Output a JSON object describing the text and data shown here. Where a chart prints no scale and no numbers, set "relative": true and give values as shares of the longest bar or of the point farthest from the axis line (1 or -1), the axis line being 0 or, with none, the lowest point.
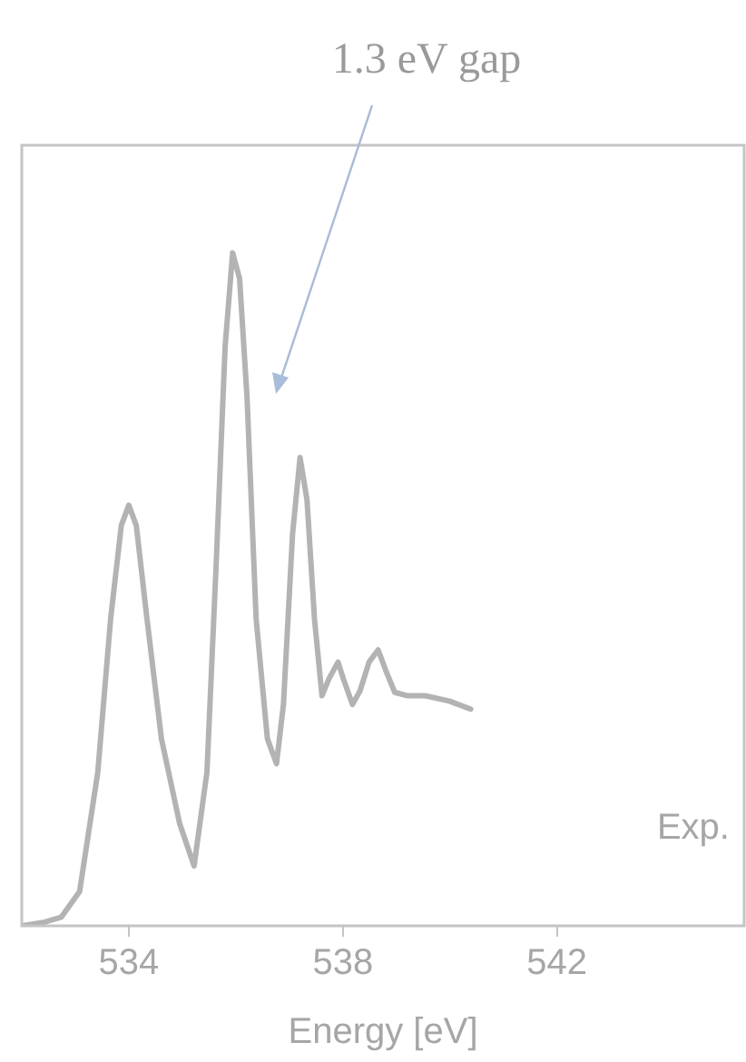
{
  "chart_data": {
    "type": "line",
    "relative": true,
    "xlabel": "Energy [eV]",
    "xlim": [
      532,
      545.5
    ],
    "xticks": [
      534,
      538,
      542
    ],
    "grid": false,
    "legend": false,
    "marker": "none",
    "line_style": "solid",
    "annotations": [
      "1.3 eV gap"
    ],
    "series": [
      {
        "name": "Exp.",
        "color": "#b3b3b3",
        "x": [
          532.0,
          532.4,
          532.74,
          533.08,
          533.42,
          533.66,
          533.86,
          534.0,
          534.14,
          534.34,
          534.61,
          534.95,
          535.22,
          535.46,
          535.63,
          535.8,
          535.94,
          536.07,
          536.21,
          536.38,
          536.59,
          536.76,
          536.89,
          537.06,
          537.2,
          537.33,
          537.47,
          537.61,
          537.74,
          537.91,
          538.01,
          538.18,
          538.32,
          538.49,
          538.66,
          538.8,
          538.97,
          539.2,
          539.54,
          539.99,
          540.39
        ],
        "values": [
          0,
          0.005,
          0.013,
          0.051,
          0.228,
          0.456,
          0.595,
          0.625,
          0.595,
          0.456,
          0.278,
          0.152,
          0.089,
          0.228,
          0.532,
          0.861,
          1.0,
          0.962,
          0.785,
          0.456,
          0.278,
          0.241,
          0.329,
          0.582,
          0.696,
          0.633,
          0.456,
          0.342,
          0.367,
          0.392,
          0.367,
          0.329,
          0.349,
          0.392,
          0.41,
          0.38,
          0.347,
          0.342,
          0.342,
          0.334,
          0.322
        ]
      }
    ]
  }
}
